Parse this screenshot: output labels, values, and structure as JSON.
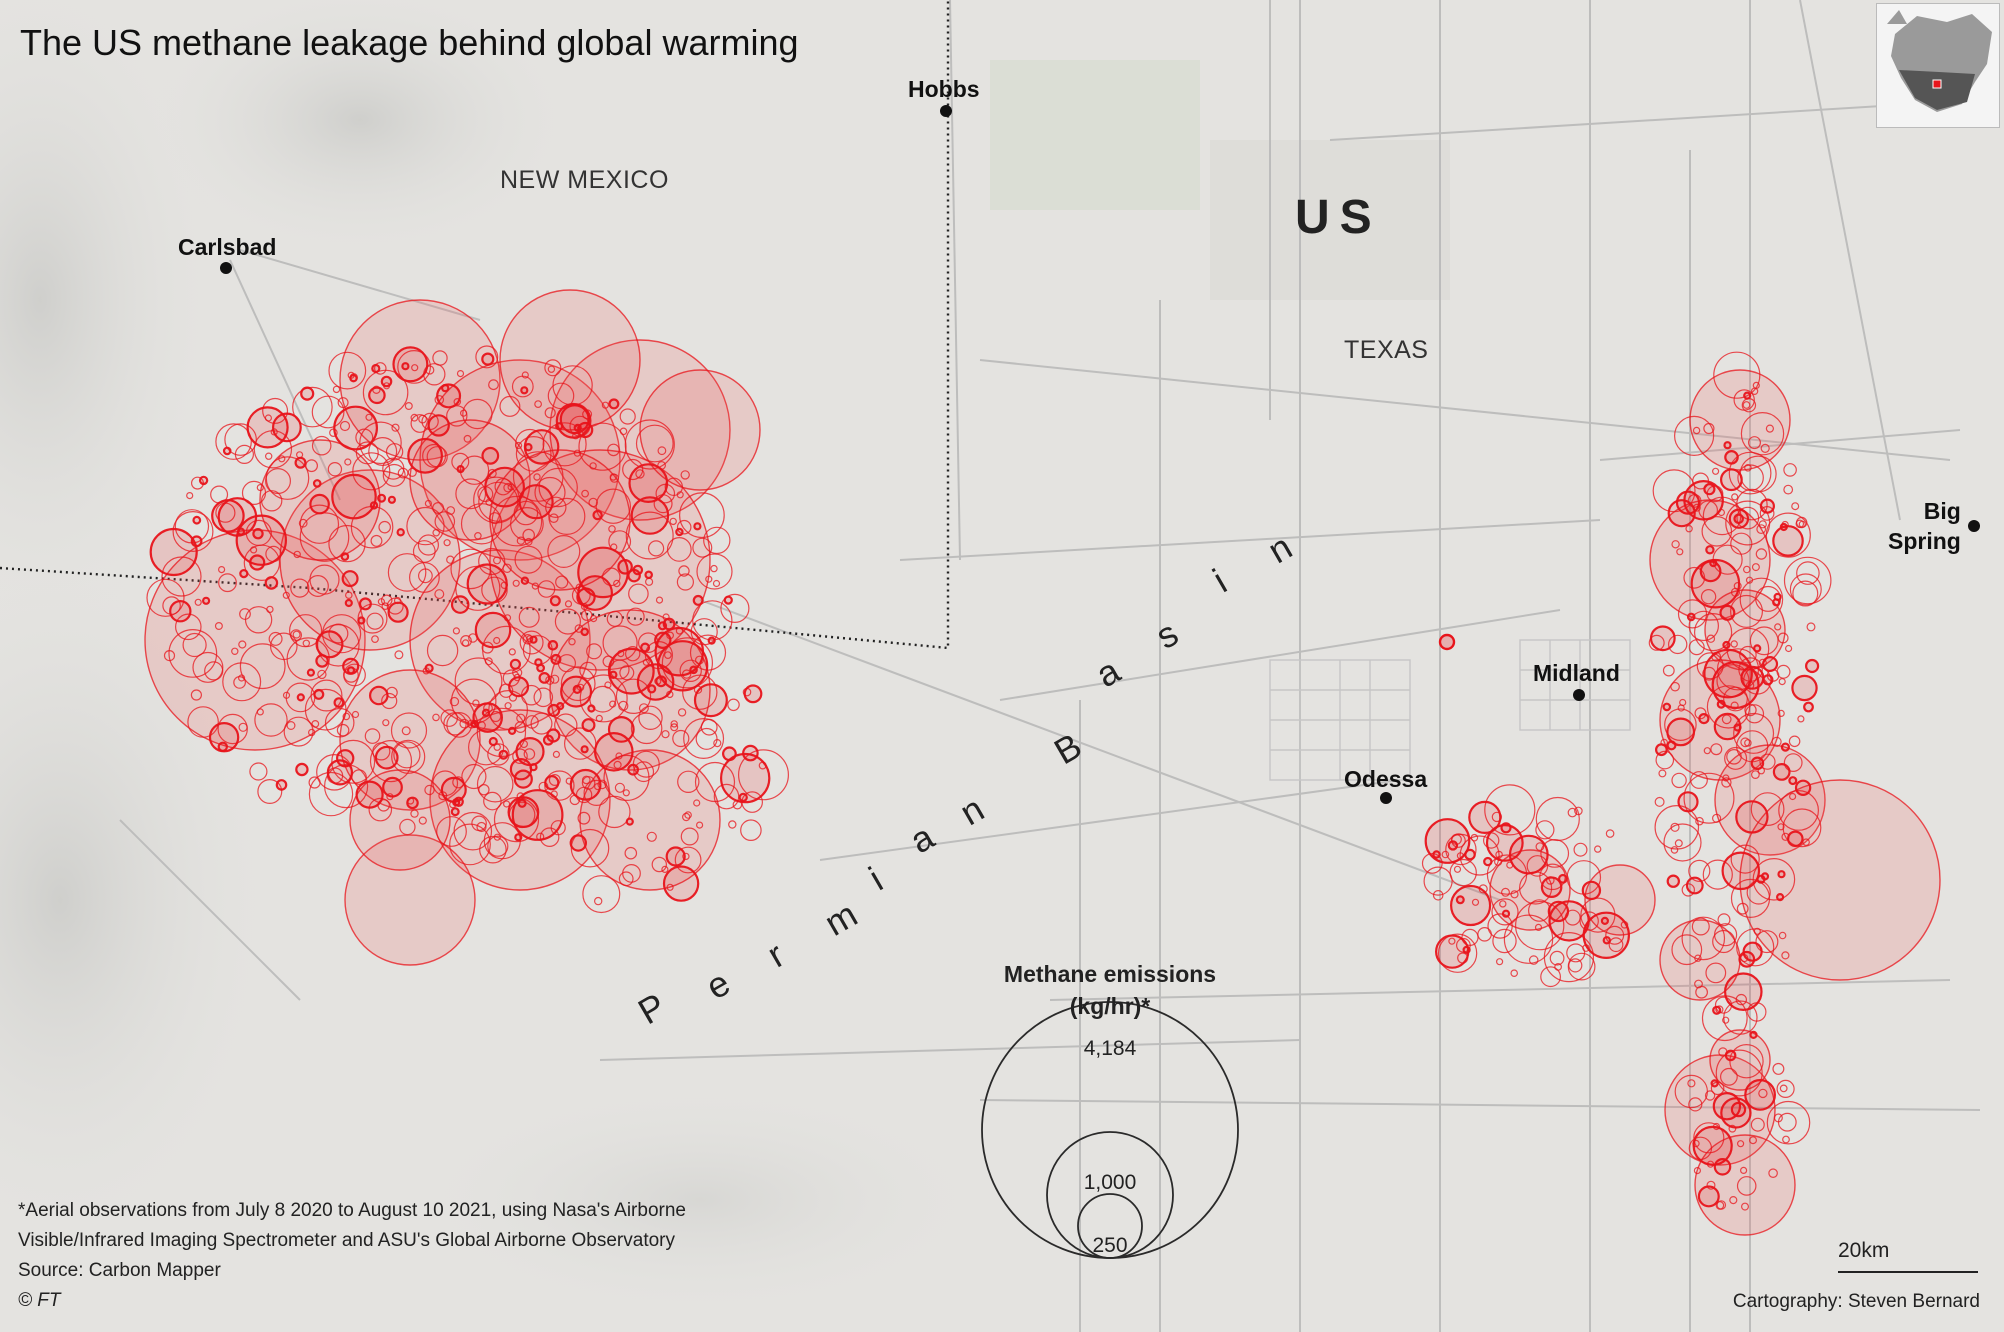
{
  "title": "The US methane leakage behind global warming",
  "labels": {
    "country": "US",
    "state_nm": "NEW MEXICO",
    "state_tx": "TEXAS",
    "basin": "Permian Basin"
  },
  "cities": [
    {
      "name": "Hobbs"
    },
    {
      "name": "Carlsbad"
    },
    {
      "name": "Midland"
    },
    {
      "name": "Odessa"
    },
    {
      "name": "Big Spring",
      "line1": "Big",
      "line2": "Spring"
    }
  ],
  "legend": {
    "title_line1": "Methane emissions",
    "title_line2": "(kg/hr)*",
    "values": [
      "4,184",
      "1,000",
      "250"
    ]
  },
  "notes": {
    "footnote_line1": "*Aerial observations from July 8 2020 to August 10 2021, using Nasa's Airborne",
    "footnote_line2": "Visible/Infrared Imaging Spectrometer and ASU's Global Airborne Observatory",
    "source": "Source: Carbon Mapper",
    "copyright": "© FT"
  },
  "credit": "Cartography: Steven Bernard",
  "scale": {
    "label": "20km"
  },
  "colors": {
    "emission_red": "#e8141b",
    "emission_fill": "rgba(240,90,90,0.18)",
    "land": "#e4e3e0",
    "road": "#b9b9b9"
  },
  "icons": [
    "locator-map-icon",
    "city-dot-icon"
  ]
}
